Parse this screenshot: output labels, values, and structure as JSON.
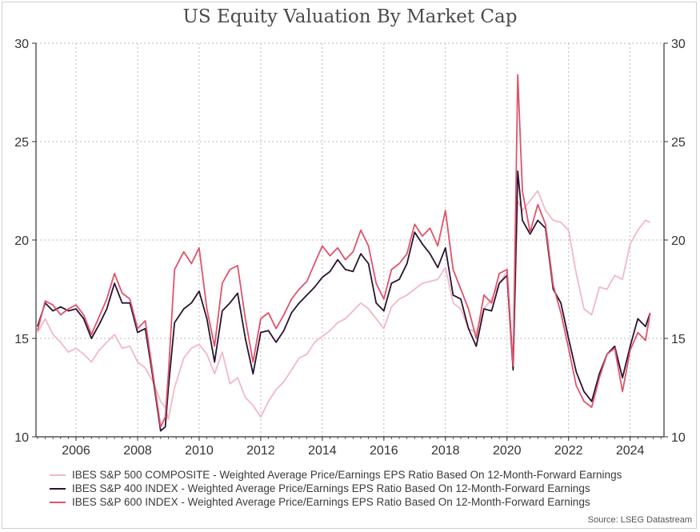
{
  "chart_data": {
    "type": "line",
    "title": "US Equity Valuation By Market Cap",
    "source": "Source: LSEG Datastream",
    "ylim": [
      10,
      30
    ],
    "xlim": [
      2004.7,
      2025.1
    ],
    "yticks": [
      10,
      15,
      20,
      25,
      30
    ],
    "xticks": [
      2006,
      2008,
      2010,
      2012,
      2014,
      2016,
      2018,
      2020,
      2022,
      2024
    ],
    "grid": true,
    "legend_position": "bottom",
    "colors": {
      "sp500": "#f2b8c6",
      "sp400": "#2a1330",
      "sp600": "#e0536a",
      "axis": "#333333",
      "grid": "#bbbbbb"
    },
    "series": [
      {
        "key": "sp500",
        "name": "IBES S&P 500 COMPOSITE - Weighted Average Price/Earnings EPS Ratio Based On 12-Month-Forward Earnings",
        "x": [
          2004.75,
          2005.0,
          2005.25,
          2005.5,
          2005.75,
          2006.0,
          2006.25,
          2006.5,
          2006.75,
          2007.0,
          2007.25,
          2007.5,
          2007.75,
          2008.0,
          2008.25,
          2008.5,
          2008.75,
          2008.9,
          2009.0,
          2009.2,
          2009.5,
          2009.75,
          2010.0,
          2010.25,
          2010.5,
          2010.75,
          2011.0,
          2011.25,
          2011.5,
          2011.75,
          2012.0,
          2012.25,
          2012.5,
          2012.75,
          2013.0,
          2013.25,
          2013.5,
          2013.75,
          2014.0,
          2014.25,
          2014.5,
          2014.75,
          2015.0,
          2015.25,
          2015.5,
          2015.75,
          2016.0,
          2016.25,
          2016.5,
          2016.75,
          2017.0,
          2017.25,
          2017.5,
          2017.75,
          2018.0,
          2018.25,
          2018.5,
          2018.75,
          2019.0,
          2019.25,
          2019.5,
          2019.75,
          2020.0,
          2020.2,
          2020.35,
          2020.5,
          2020.75,
          2021.0,
          2021.25,
          2021.5,
          2021.75,
          2022.0,
          2022.25,
          2022.5,
          2022.75,
          2023.0,
          2023.25,
          2023.5,
          2023.75,
          2024.0,
          2024.25,
          2024.5,
          2024.65
        ],
        "values": [
          15.3,
          16.0,
          15.2,
          14.8,
          14.3,
          14.5,
          14.2,
          13.8,
          14.4,
          14.8,
          15.2,
          14.5,
          14.6,
          13.8,
          13.5,
          12.8,
          11.8,
          11.5,
          10.9,
          12.5,
          14.0,
          14.5,
          14.7,
          14.2,
          13.2,
          14.3,
          12.7,
          13.0,
          12.0,
          11.6,
          11.0,
          11.8,
          12.4,
          12.8,
          13.4,
          14.0,
          14.2,
          14.8,
          15.1,
          15.4,
          15.8,
          16.0,
          16.4,
          16.8,
          16.5,
          16.0,
          15.5,
          16.6,
          17.0,
          17.2,
          17.5,
          17.8,
          17.9,
          18.0,
          18.6,
          16.8,
          16.5,
          15.5,
          15.3,
          16.5,
          17.0,
          17.8,
          18.4,
          13.5,
          22.0,
          21.5,
          22.0,
          22.5,
          21.5,
          21.0,
          20.9,
          20.5,
          18.3,
          16.5,
          16.2,
          17.6,
          17.5,
          18.2,
          18.0,
          19.8,
          20.5,
          21.0,
          20.9
        ]
      },
      {
        "key": "sp400",
        "name": "IBES S&P 400 INDEX - Weighted Average Price/Earnings EPS Ratio Based On 12-Month-Forward Earnings",
        "x": [
          2004.75,
          2005.0,
          2005.25,
          2005.5,
          2005.75,
          2006.0,
          2006.25,
          2006.5,
          2006.75,
          2007.0,
          2007.25,
          2007.5,
          2007.75,
          2008.0,
          2008.25,
          2008.5,
          2008.75,
          2008.9,
          2009.0,
          2009.2,
          2009.5,
          2009.75,
          2010.0,
          2010.25,
          2010.5,
          2010.75,
          2011.0,
          2011.25,
          2011.5,
          2011.75,
          2012.0,
          2012.25,
          2012.5,
          2012.75,
          2013.0,
          2013.25,
          2013.5,
          2013.75,
          2014.0,
          2014.25,
          2014.5,
          2014.75,
          2015.0,
          2015.25,
          2015.5,
          2015.75,
          2016.0,
          2016.25,
          2016.5,
          2016.75,
          2017.0,
          2017.25,
          2017.5,
          2017.75,
          2018.0,
          2018.25,
          2018.5,
          2018.75,
          2019.0,
          2019.25,
          2019.5,
          2019.75,
          2020.0,
          2020.2,
          2020.35,
          2020.5,
          2020.75,
          2021.0,
          2021.25,
          2021.5,
          2021.75,
          2022.0,
          2022.25,
          2022.5,
          2022.75,
          2023.0,
          2023.25,
          2023.5,
          2023.75,
          2024.0,
          2024.25,
          2024.5,
          2024.65
        ],
        "values": [
          15.6,
          16.8,
          16.4,
          16.6,
          16.4,
          16.5,
          16.0,
          15.0,
          15.7,
          16.5,
          17.8,
          16.8,
          16.8,
          15.3,
          15.5,
          13.0,
          10.3,
          10.5,
          12.5,
          15.8,
          16.5,
          16.8,
          17.4,
          16.0,
          13.8,
          16.4,
          16.8,
          17.3,
          15.0,
          13.2,
          15.3,
          15.4,
          14.8,
          15.4,
          16.3,
          16.8,
          17.2,
          17.6,
          18.1,
          18.4,
          19.0,
          18.5,
          18.4,
          19.3,
          18.8,
          16.8,
          16.4,
          17.8,
          18.0,
          18.8,
          20.4,
          19.8,
          19.3,
          18.6,
          19.6,
          17.2,
          17.0,
          15.5,
          14.6,
          16.5,
          16.4,
          17.8,
          18.2,
          13.4,
          23.5,
          21.0,
          20.3,
          21.0,
          20.6,
          17.5,
          16.8,
          15.0,
          13.3,
          12.3,
          11.8,
          13.2,
          14.2,
          14.6,
          13.0,
          14.6,
          16.0,
          15.6,
          16.3
        ]
      },
      {
        "key": "sp600",
        "name": "IBES S&P 600 INDEX - Weighted Average Price/Earnings EPS Ratio Based On 12-Month-Forward Earnings",
        "x": [
          2004.75,
          2005.0,
          2005.25,
          2005.5,
          2005.75,
          2006.0,
          2006.25,
          2006.5,
          2006.75,
          2007.0,
          2007.25,
          2007.5,
          2007.75,
          2008.0,
          2008.25,
          2008.5,
          2008.75,
          2008.9,
          2009.0,
          2009.2,
          2009.5,
          2009.75,
          2010.0,
          2010.25,
          2010.5,
          2010.75,
          2011.0,
          2011.25,
          2011.5,
          2011.75,
          2012.0,
          2012.25,
          2012.5,
          2012.75,
          2013.0,
          2013.25,
          2013.5,
          2013.75,
          2014.0,
          2014.25,
          2014.5,
          2014.75,
          2015.0,
          2015.25,
          2015.5,
          2015.75,
          2016.0,
          2016.25,
          2016.5,
          2016.75,
          2017.0,
          2017.25,
          2017.5,
          2017.75,
          2018.0,
          2018.25,
          2018.5,
          2018.75,
          2019.0,
          2019.25,
          2019.5,
          2019.75,
          2020.0,
          2020.2,
          2020.35,
          2020.5,
          2020.75,
          2021.0,
          2021.25,
          2021.5,
          2021.75,
          2022.0,
          2022.25,
          2022.5,
          2022.75,
          2023.0,
          2023.25,
          2023.5,
          2023.75,
          2024.0,
          2024.25,
          2024.5,
          2024.65
        ],
        "values": [
          15.4,
          16.9,
          16.7,
          16.2,
          16.5,
          16.7,
          16.2,
          15.2,
          16.1,
          17.0,
          18.3,
          17.3,
          17.0,
          15.5,
          15.9,
          13.2,
          10.5,
          11.0,
          13.2,
          18.5,
          19.4,
          18.8,
          19.6,
          16.5,
          14.6,
          17.8,
          18.5,
          18.7,
          16.0,
          13.8,
          16.0,
          16.3,
          15.5,
          16.2,
          17.0,
          17.5,
          17.9,
          18.8,
          19.7,
          19.2,
          19.6,
          19.0,
          19.4,
          20.5,
          19.7,
          17.8,
          17.0,
          18.5,
          18.8,
          19.3,
          20.8,
          20.2,
          20.6,
          19.7,
          21.5,
          18.5,
          17.5,
          16.5,
          15.0,
          17.2,
          16.8,
          18.3,
          18.5,
          13.6,
          28.4,
          22.5,
          20.4,
          21.8,
          20.8,
          17.7,
          16.3,
          14.5,
          12.6,
          11.8,
          11.5,
          13.0,
          14.2,
          14.5,
          12.3,
          14.4,
          15.3,
          14.9,
          16.3
        ]
      }
    ]
  }
}
